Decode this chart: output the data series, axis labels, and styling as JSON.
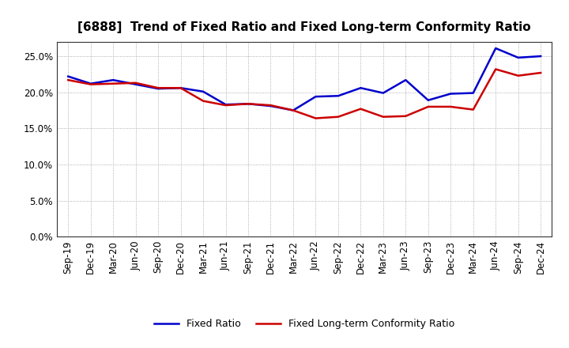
{
  "title": "[6888]  Trend of Fixed Ratio and Fixed Long-term Conformity Ratio",
  "x_labels": [
    "Sep-19",
    "Dec-19",
    "Mar-20",
    "Jun-20",
    "Sep-20",
    "Dec-20",
    "Mar-21",
    "Jun-21",
    "Sep-21",
    "Dec-21",
    "Mar-22",
    "Jun-22",
    "Sep-22",
    "Dec-22",
    "Mar-23",
    "Jun-23",
    "Sep-23",
    "Dec-23",
    "Mar-24",
    "Jun-24",
    "Sep-24",
    "Dec-24"
  ],
  "fixed_ratio": [
    22.2,
    21.2,
    21.7,
    21.1,
    20.5,
    20.6,
    20.1,
    18.3,
    18.4,
    18.1,
    17.5,
    19.4,
    19.5,
    20.6,
    19.9,
    21.7,
    18.9,
    19.8,
    19.9,
    26.1,
    24.8,
    25.0
  ],
  "fixed_lt_ratio": [
    21.7,
    21.1,
    21.2,
    21.3,
    20.6,
    20.6,
    18.8,
    18.2,
    18.4,
    18.2,
    17.5,
    16.4,
    16.6,
    17.7,
    16.6,
    16.7,
    18.0,
    18.0,
    17.6,
    23.2,
    22.3,
    22.7
  ],
  "fixed_ratio_color": "#0000cc",
  "fixed_lt_ratio_color": "#cc0000",
  "background_color": "#ffffff",
  "plot_bg_color": "#ffffff",
  "grid_color": "#999999",
  "ylim": [
    0,
    27
  ],
  "yticks": [
    0.0,
    5.0,
    10.0,
    15.0,
    20.0,
    25.0
  ],
  "legend_fixed": "Fixed Ratio",
  "legend_fixed_lt": "Fixed Long-term Conformity Ratio",
  "line_width": 1.8,
  "title_fontsize": 11,
  "tick_fontsize": 8.5
}
